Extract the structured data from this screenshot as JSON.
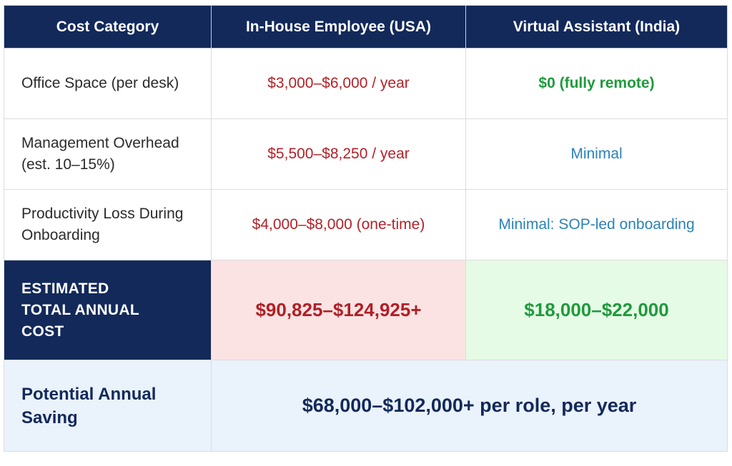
{
  "table": {
    "headers": [
      "Cost Category",
      "In-House Employee (USA)",
      "Virtual Assistant (India)"
    ],
    "rows": [
      {
        "category_lines": [
          "Office Space (per desk)"
        ],
        "usa": "$3,000–$6,000 / year",
        "india": "$0 (fully remote)"
      },
      {
        "category_lines": [
          "Management Overhead",
          "(est. 10–15%)"
        ],
        "usa": "$5,500–$8,250 / year",
        "india": "Minimal"
      },
      {
        "category_lines": [
          "Productivity Loss During",
          "Onboarding"
        ],
        "usa": "$4,000–$8,000 (one-time)",
        "india": "Minimal: SOP-led onboarding"
      }
    ],
    "total": {
      "label_lines": [
        "ESTIMATED",
        "TOTAL ANNUAL",
        "COST"
      ],
      "usa": "$90,825–$124,925+",
      "india": "$18,000–$22,000"
    },
    "saving": {
      "label_lines": [
        "Potential Annual",
        "Saving"
      ],
      "value": "$68,000–$102,000+ per role, per year"
    }
  },
  "colors": {
    "header_bg": "#12295a",
    "usa_value": "#b22128",
    "india_value_green": "#1f9a3c",
    "india_value_blue": "#2b82b8",
    "total_usa_bg": "#fce3e3",
    "total_india_bg": "#e6fbe6",
    "saving_bg": "#eaf2fb"
  }
}
